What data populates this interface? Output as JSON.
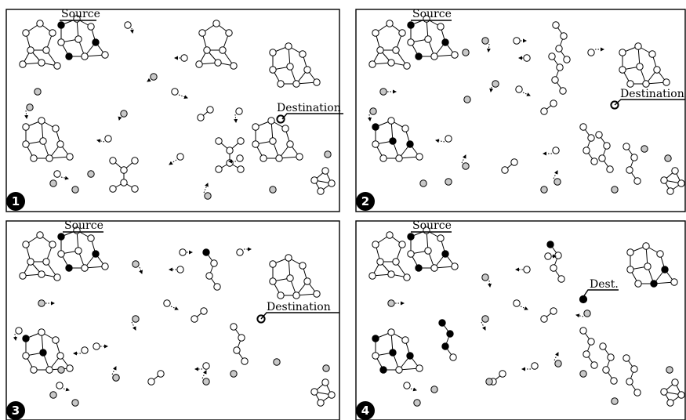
{
  "panels": [
    {
      "number": "1",
      "source_label": "Source",
      "destination_label": "Destination"
    },
    {
      "number": "2",
      "source_label": "Source",
      "destination_label": "Destination"
    },
    {
      "number": "3",
      "source_label": "Source",
      "destination_label": "Destination"
    },
    {
      "number": "4",
      "source_label": "Source",
      "destination_label": "Dest."
    }
  ],
  "colors": {
    "path_node": "#000000",
    "node": "#ffffff",
    "isolated_node": "#c8c8c8",
    "stroke": "#000000"
  }
}
